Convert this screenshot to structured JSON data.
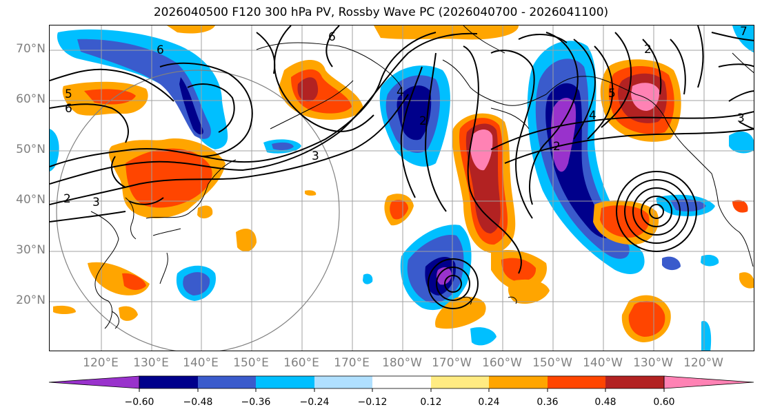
{
  "title": "2026040500 F120 300 hPa PV, Rossby Wave PC (2026040700 - 2026041100)",
  "lat_labels": [
    "70°N",
    "60°N",
    "50°N",
    "40°N",
    "30°N",
    "20°N"
  ],
  "lon_labels": [
    "120°E",
    "130°E",
    "140°E",
    "150°E",
    "160°E",
    "170°E",
    "180°W",
    "170°W",
    "160°W",
    "150°W",
    "140°W",
    "130°W",
    "120°W"
  ],
  "colorbar": {
    "colors": [
      "#9932cc",
      "#00008b",
      "#3a5bcc",
      "#00bfff",
      "#b0e0ff",
      "#ffffff",
      "#ffeb82",
      "#ffa500",
      "#ff4500",
      "#b22222",
      "#ff82b4"
    ],
    "tick_labels": [
      "−0.60",
      "−0.48",
      "−0.36",
      "−0.24",
      "−0.12",
      "0.12",
      "0.24",
      "0.36",
      "0.48",
      "0.60"
    ]
  },
  "contour_labels": [
    "6",
    "6",
    "6",
    "5",
    "4",
    "3",
    "2",
    "2",
    "3",
    "2",
    "4",
    "5",
    "3",
    "2",
    "7"
  ],
  "colors": {
    "lat_lon_label": "#808080",
    "grid": "#a0a0a0"
  }
}
